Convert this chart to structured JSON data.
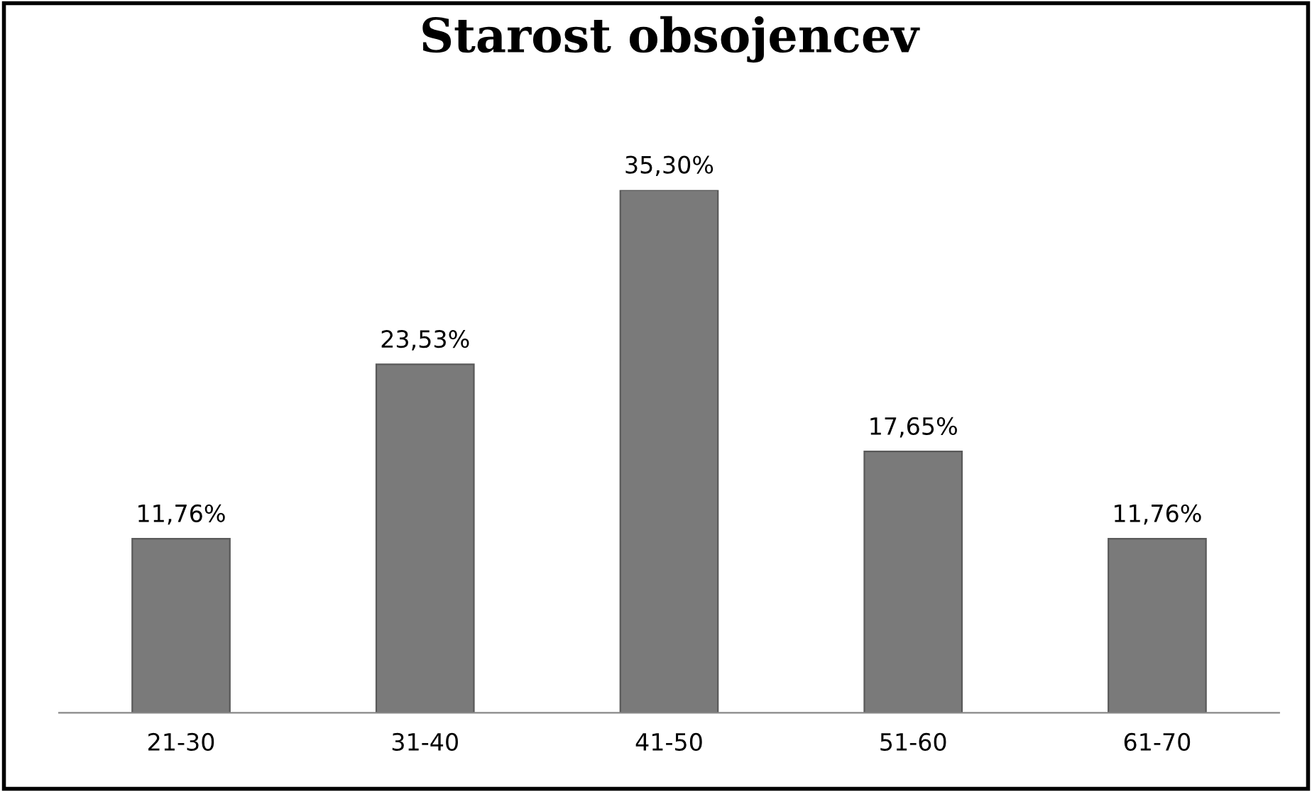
{
  "chart_data": {
    "type": "bar",
    "title": "Starost obsojencev",
    "categories": [
      "21-30",
      "31-40",
      "41-50",
      "51-60",
      "61-70"
    ],
    "values": [
      11.76,
      23.53,
      35.3,
      17.65,
      11.76
    ],
    "value_labels": [
      "11,76%",
      "23,53%",
      "35,30%",
      "17,65%",
      "11,76%"
    ],
    "color": "#7a7a7a",
    "grid": false,
    "legend": false
  }
}
